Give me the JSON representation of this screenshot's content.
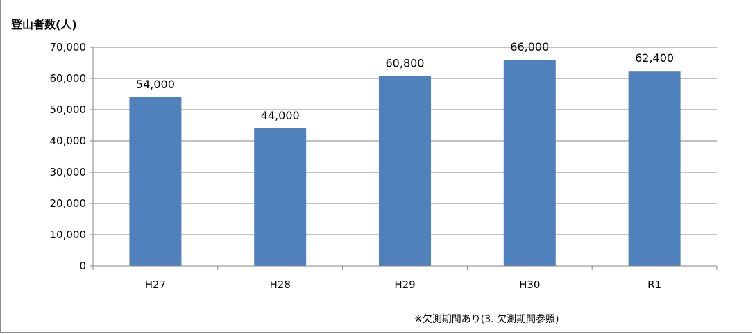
{
  "page_caption": "",
  "chart_data": {
    "type": "bar",
    "ylabel": "登山者数(人)",
    "xlabel": "",
    "categories": [
      "H27",
      "H28",
      "H29",
      "H30",
      "R1"
    ],
    "values": [
      54000,
      44000,
      60800,
      66000,
      62400
    ],
    "data_labels": [
      "54,000",
      "44,000",
      "60,800",
      "66,000",
      "62,400"
    ],
    "ylim": [
      0,
      70000
    ],
    "yticks": [
      0,
      10000,
      20000,
      30000,
      40000,
      50000,
      60000,
      70000
    ],
    "ytick_labels": [
      "0",
      "10,000",
      "20,000",
      "30,000",
      "40,000",
      "50,000",
      "60,000",
      "70,000"
    ],
    "grid": true,
    "legend": "none",
    "bar_color": "#4f81bd",
    "note": "※欠測期間あり(3. 欠測期間参照)"
  }
}
